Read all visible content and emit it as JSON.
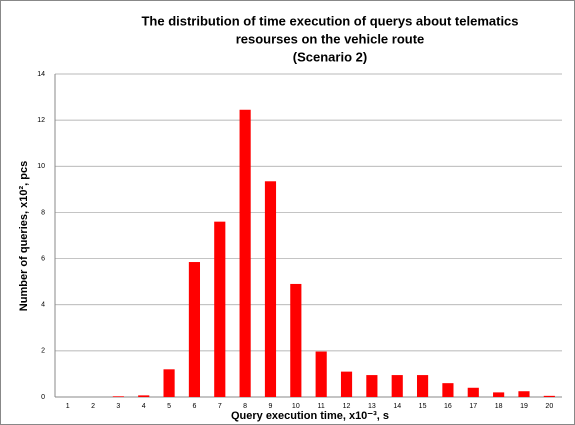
{
  "chart_data": {
    "type": "bar",
    "title": [
      "The distribution of time execution of querys about telematics",
      "resourses on the vehicle route",
      "(Scenario 2)"
    ],
    "x_label": "Query execution time, x10⁻³, s",
    "y_label": "Number of queries, x10², pcs",
    "categories": [
      "1",
      "2",
      "3",
      "4",
      "5",
      "6",
      "7",
      "8",
      "9",
      "10",
      "11",
      "12",
      "13",
      "14",
      "15",
      "16",
      "17",
      "18",
      "19",
      "20"
    ],
    "values": [
      0,
      0,
      0.03,
      0.07,
      1.2,
      5.85,
      7.6,
      12.45,
      9.35,
      4.9,
      1.97,
      1.1,
      0.95,
      0.95,
      0.95,
      0.6,
      0.4,
      0.2,
      0.25,
      0.05
    ],
    "color": "#ff0000",
    "ylim": [
      0,
      14
    ],
    "yticks": [
      0,
      2,
      4,
      6,
      8,
      10,
      12,
      14
    ],
    "grid": true
  }
}
